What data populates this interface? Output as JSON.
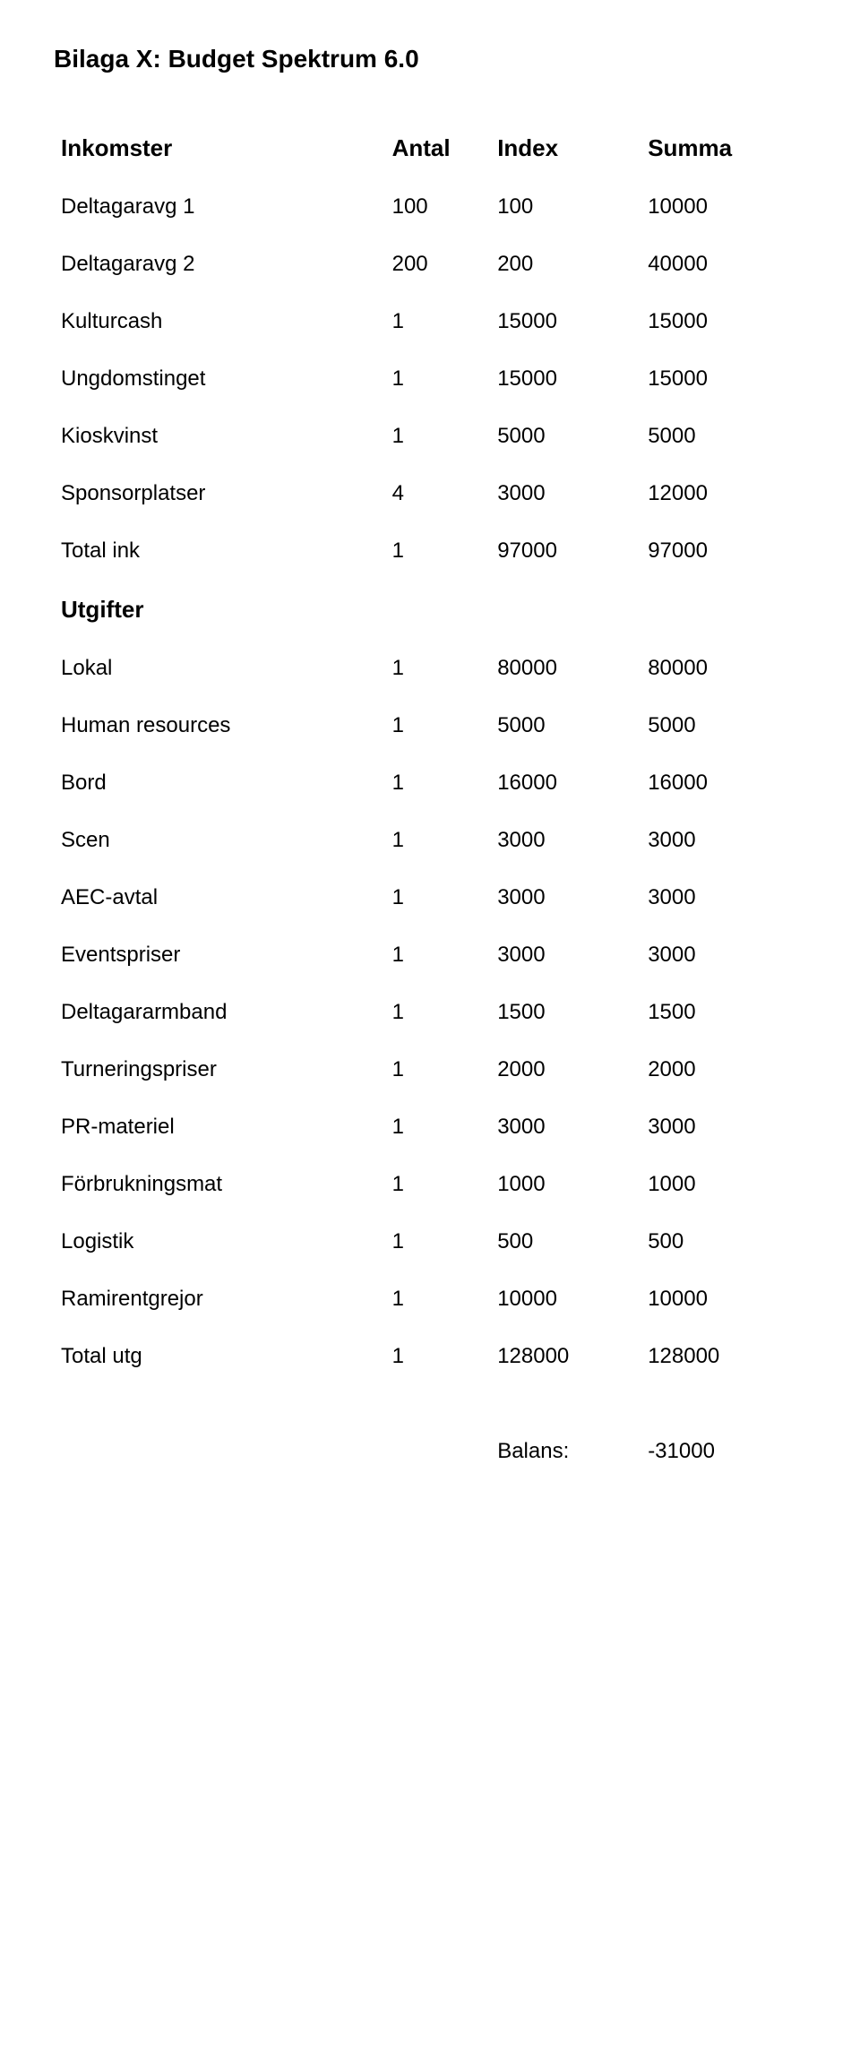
{
  "title": "Bilaga X: Budget Spektrum 6.0",
  "headers": {
    "antal": "Antal",
    "index": "Index",
    "summa": "Summa"
  },
  "sections": {
    "inkomster": "Inkomster",
    "utgifter": "Utgifter"
  },
  "income_rows": [
    {
      "label": "Deltagaravg 1",
      "antal": "100",
      "index": "100",
      "summa": "10000"
    },
    {
      "label": "Deltagaravg 2",
      "antal": "200",
      "index": "200",
      "summa": "40000"
    },
    {
      "label": "Kulturcash",
      "antal": "1",
      "index": "15000",
      "summa": "15000"
    },
    {
      "label": "Ungdomstinget",
      "antal": "1",
      "index": "15000",
      "summa": "15000"
    },
    {
      "label": "Kioskvinst",
      "antal": "1",
      "index": "5000",
      "summa": "5000"
    },
    {
      "label": "Sponsorplatser",
      "antal": "4",
      "index": "3000",
      "summa": "12000"
    },
    {
      "label": "Total ink",
      "antal": "1",
      "index": "97000",
      "summa": "97000"
    }
  ],
  "expense_rows": [
    {
      "label": "Lokal",
      "antal": "1",
      "index": "80000",
      "summa": "80000"
    },
    {
      "label": "Human resources",
      "antal": "1",
      "index": "5000",
      "summa": "5000"
    },
    {
      "label": "Bord",
      "antal": "1",
      "index": "16000",
      "summa": "16000"
    },
    {
      "label": "Scen",
      "antal": "1",
      "index": "3000",
      "summa": "3000"
    },
    {
      "label": "AEC-avtal",
      "antal": "1",
      "index": "3000",
      "summa": "3000"
    },
    {
      "label": "Eventspriser",
      "antal": "1",
      "index": "3000",
      "summa": "3000"
    },
    {
      "label": "Deltagararmband",
      "antal": "1",
      "index": "1500",
      "summa": "1500"
    },
    {
      "label": "Turneringspriser",
      "antal": "1",
      "index": "2000",
      "summa": "2000"
    },
    {
      "label": "PR-materiel",
      "antal": "1",
      "index": "3000",
      "summa": "3000"
    },
    {
      "label": "Förbrukningsmat",
      "antal": "1",
      "index": "1000",
      "summa": "1000"
    },
    {
      "label": "Logistik",
      "antal": "1",
      "index": "500",
      "summa": "500"
    },
    {
      "label": "Ramirentgrejor",
      "antal": "1",
      "index": "10000",
      "summa": "10000"
    },
    {
      "label": "Total utg",
      "antal": "1",
      "index": "128000",
      "summa": "128000"
    }
  ],
  "balance": {
    "label": "Balans:",
    "value": "-31000"
  }
}
